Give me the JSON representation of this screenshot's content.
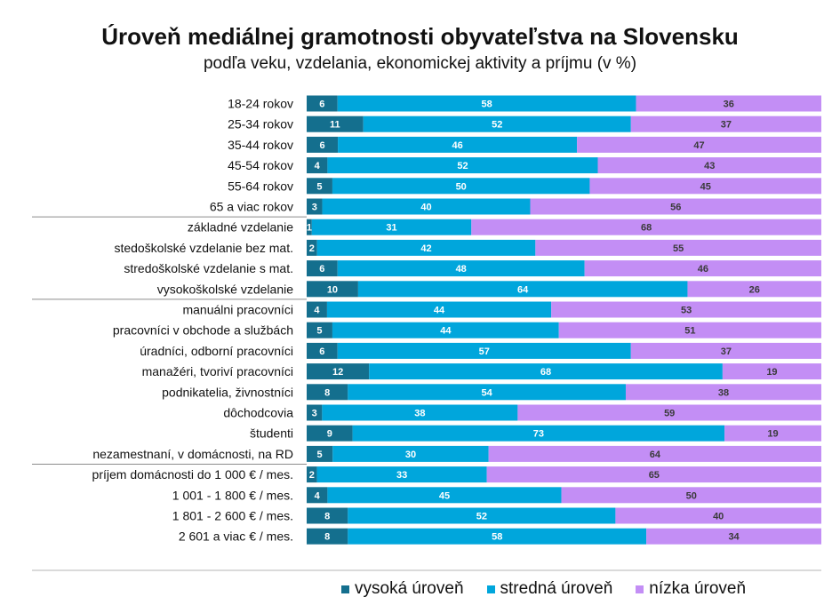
{
  "chart_data": {
    "type": "bar",
    "stacked": true,
    "orientation": "horizontal",
    "title": "Úroveň mediálnej gramotnosti obyvateľstva na Slovensku",
    "subtitle": "podľa veku, vzdelania, ekonomickej aktivity a príjmu (v %)",
    "categories": [
      "18-24 rokov",
      "25-34 rokov",
      "35-44 rokov",
      "45-54 rokov",
      "55-64 rokov",
      "65 a viac rokov",
      "základné vzdelanie",
      "stedoškolské vzdelanie bez mat.",
      "stredoškolské vzdelanie s mat.",
      "vysokoškolské vzdelanie",
      "manuálni pracovníci",
      "pracovníci v obchode a službách",
      "úradníci, odborní pracovníci",
      "manažéri, tvoriví pracovníci",
      "podnikatelia, živnostníci",
      "dôchodcovia",
      "študenti",
      "nezamestnaní, v domácnosti, na RD",
      "príjem domácnosti do 1 000 € / mes.",
      "1 001 - 1 800 €  / mes.",
      "1 801 - 2 600 €  / mes.",
      "2 601 a viac €  / mes."
    ],
    "series": [
      {
        "name": "vysoká úroveň",
        "color": "#146f8e",
        "values": [
          6,
          11,
          6,
          4,
          5,
          3,
          1,
          2,
          6,
          10,
          4,
          5,
          6,
          12,
          8,
          3,
          9,
          5,
          2,
          4,
          8,
          8
        ]
      },
      {
        "name": "stredná úroveň",
        "color": "#00a6dc",
        "values": [
          58,
          52,
          46,
          52,
          50,
          40,
          31,
          42,
          48,
          64,
          44,
          44,
          57,
          68,
          54,
          38,
          73,
          30,
          33,
          45,
          52,
          58
        ]
      },
      {
        "name": "nízka úroveň",
        "color": "#c38ef5",
        "values": [
          36,
          37,
          47,
          43,
          45,
          56,
          68,
          55,
          46,
          26,
          53,
          51,
          37,
          19,
          38,
          59,
          19,
          64,
          65,
          50,
          40,
          34
        ]
      }
    ],
    "group_separators_after": [
      5,
      9,
      17
    ],
    "legend_position": "bottom"
  }
}
